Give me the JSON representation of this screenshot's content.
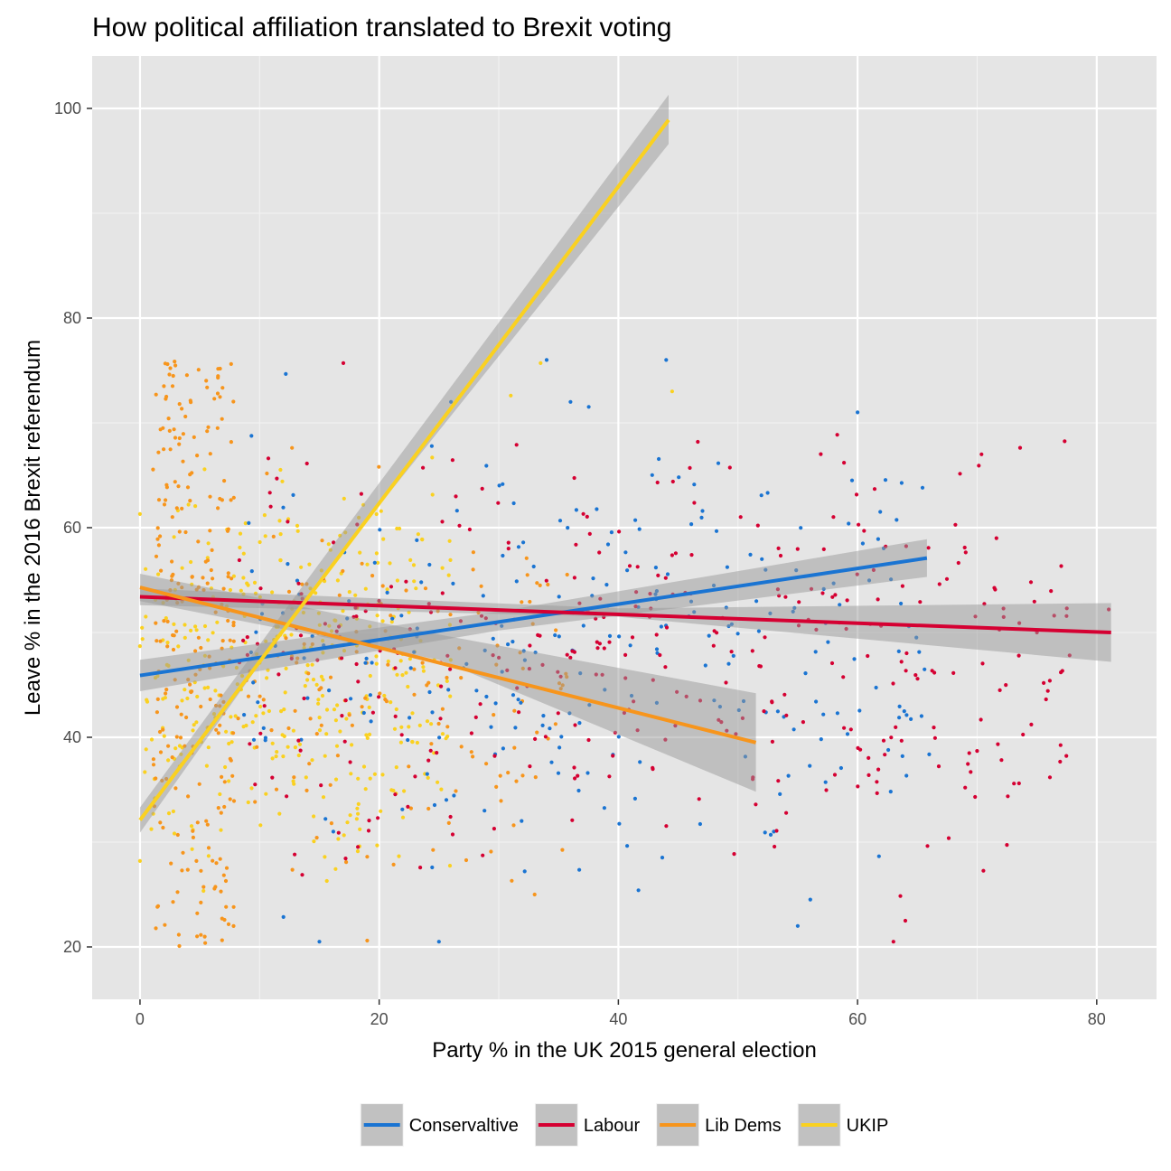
{
  "chart_data": {
    "type": "scatter",
    "title": "How political affiliation translated to Brexit voting",
    "xlabel": "Party % in the UK 2015 general election",
    "ylabel": "Leave % in the 2016 Brexit referendum",
    "xlim": [
      -4,
      85
    ],
    "ylim": [
      15,
      105
    ],
    "x_ticks": [
      0,
      20,
      40,
      60,
      80
    ],
    "y_ticks": [
      20,
      40,
      60,
      80,
      100
    ],
    "grid": true,
    "legend_position": "bottom",
    "background": "#e5e5e5",
    "band_color": "#999999",
    "series": [
      {
        "name": "Conservaltive",
        "color": "#1a74d2",
        "fit_line": [
          [
            0,
            45.9
          ],
          [
            65.8,
            57.1
          ]
        ],
        "band_upper": [
          [
            0,
            47.4
          ],
          [
            30,
            52.0
          ],
          [
            65.8,
            58.9
          ]
        ],
        "band_lower": [
          [
            0,
            44.4
          ],
          [
            30,
            50.2
          ],
          [
            65.8,
            55.3
          ]
        ],
        "cloud": {
          "x_range": [
            8,
            66
          ],
          "y_range": [
            20,
            76
          ],
          "count": 260,
          "seed": 11
        },
        "points": [
          [
            36,
            72
          ],
          [
            44,
            76
          ],
          [
            60,
            71
          ],
          [
            34,
            76
          ],
          [
            15,
            20.5
          ],
          [
            25,
            20.5
          ],
          [
            55,
            22
          ],
          [
            53,
            31
          ],
          [
            26,
            72
          ],
          [
            52,
            57
          ]
        ]
      },
      {
        "name": "Labour",
        "color": "#d50032",
        "fit_line": [
          [
            0,
            53.4
          ],
          [
            81.2,
            50.0
          ]
        ],
        "band_upper": [
          [
            0,
            54.2
          ],
          [
            40,
            52.3
          ],
          [
            81.2,
            52.8
          ]
        ],
        "band_lower": [
          [
            0,
            52.6
          ],
          [
            40,
            51.5
          ],
          [
            81.2,
            47.2
          ]
        ],
        "cloud": {
          "x_range": [
            8,
            78
          ],
          "y_range": [
            20,
            76
          ],
          "count": 360,
          "seed": 23
        },
        "points": [
          [
            17,
            75.7
          ],
          [
            81,
            52.2
          ],
          [
            77.5,
            52.3
          ],
          [
            75,
            50
          ],
          [
            74.5,
            54.8
          ],
          [
            73.5,
            35.6
          ],
          [
            69,
            35.2
          ],
          [
            77,
            46.2
          ],
          [
            63,
            20.5
          ],
          [
            64,
            22.5
          ]
        ]
      },
      {
        "name": "Lib Dems",
        "color": "#f7951c",
        "fit_line": [
          [
            0,
            54.3
          ],
          [
            51.5,
            39.5
          ]
        ],
        "band_upper": [
          [
            0,
            55.6
          ],
          [
            25,
            49.8
          ],
          [
            51.5,
            44.2
          ]
        ],
        "band_lower": [
          [
            0,
            53.0
          ],
          [
            25,
            47.4
          ],
          [
            51.5,
            34.8
          ]
        ],
        "dense_cloud": {
          "x_range": [
            1,
            8
          ],
          "y_range": [
            20,
            76
          ],
          "count": 230,
          "seed": 37
        },
        "cloud": {
          "x_range": [
            6,
            36
          ],
          "y_range": [
            20,
            70
          ],
          "count": 150,
          "seed": 41
        },
        "points": [
          [
            2.3,
            75.6
          ],
          [
            2,
            73.5
          ],
          [
            2.2,
            72.5
          ],
          [
            6.5,
            72.8
          ],
          [
            19,
            28.6
          ],
          [
            19,
            20.6
          ],
          [
            33,
            25
          ]
        ]
      },
      {
        "name": "UKIP",
        "color": "#fad120",
        "fit_line": [
          [
            0,
            32.1
          ],
          [
            44.2,
            98.9
          ]
        ],
        "band_upper": [
          [
            0,
            33.3
          ],
          [
            15,
            56.6
          ],
          [
            44.2,
            101.3
          ]
        ],
        "band_lower": [
          [
            0,
            30.9
          ],
          [
            15,
            55.0
          ],
          [
            44.2,
            96.6
          ]
        ],
        "cloud": {
          "x_range": [
            0,
            26
          ],
          "y_range": [
            20,
            73
          ],
          "count": 380,
          "seed": 53
        },
        "points": [
          [
            0,
            61.3
          ],
          [
            0,
            28.2
          ],
          [
            0,
            48.7
          ],
          [
            33.5,
            75.7
          ],
          [
            44.5,
            73
          ],
          [
            31,
            72.6
          ]
        ]
      }
    ]
  }
}
